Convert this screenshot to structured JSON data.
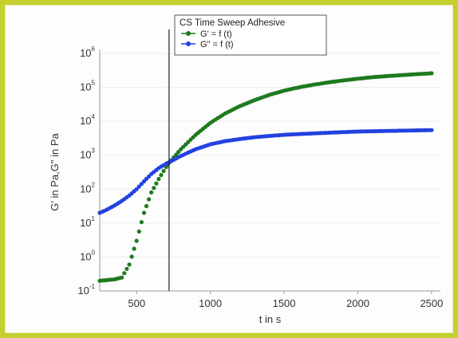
{
  "chart_data": {
    "type": "scatter",
    "title": "",
    "xlabel": "t in s",
    "ylabel": "G' in Pa,G\" in Pa",
    "xlim": [
      250,
      2560
    ],
    "ylim_log10": [
      -1,
      6
    ],
    "y_scale": "log",
    "x_ticks": [
      500,
      1000,
      1500,
      2000,
      2500
    ],
    "y_ticks": [
      {
        "base": "10",
        "exp": "-1"
      },
      {
        "base": "10",
        "exp": "0"
      },
      {
        "base": "10",
        "exp": "1"
      },
      {
        "base": "10",
        "exp": "2"
      },
      {
        "base": "10",
        "exp": "3"
      },
      {
        "base": "10",
        "exp": "4"
      },
      {
        "base": "10",
        "exp": "5"
      },
      {
        "base": "10",
        "exp": "6"
      }
    ],
    "vertical_line_x": 720,
    "grid": "horizontal",
    "legend": {
      "placement": "top-center",
      "title": "CS Time Sweep Adhesive",
      "entries": [
        "G' = f (t)",
        "G\" = f (t)"
      ]
    },
    "series": [
      {
        "name": "G' = f (t)",
        "color": "#1e7a1e",
        "x": [
          250,
          350,
          400,
          450,
          500,
          550,
          600,
          650,
          700,
          720,
          800,
          900,
          1000,
          1100,
          1200,
          1300,
          1400,
          1500,
          1600,
          1700,
          1800,
          1900,
          2000,
          2100,
          2200,
          2300,
          2400,
          2500
        ],
        "y": [
          0.2,
          0.22,
          0.25,
          0.6,
          3,
          20,
          80,
          200,
          450,
          600,
          1500,
          4000,
          9000,
          17000,
          28000,
          42000,
          60000,
          80000,
          100000,
          120000,
          140000,
          160000,
          180000,
          200000,
          215000,
          230000,
          245000,
          260000
        ]
      },
      {
        "name": "G\" = f (t)",
        "color": "#2341e0",
        "x": [
          250,
          300,
          350,
          400,
          450,
          500,
          550,
          600,
          650,
          700,
          720,
          800,
          900,
          1000,
          1100,
          1200,
          1300,
          1400,
          1500,
          1600,
          1700,
          1800,
          1900,
          2000,
          2100,
          2200,
          2300,
          2400,
          2500
        ],
        "y": [
          20,
          25,
          33,
          45,
          65,
          100,
          170,
          280,
          420,
          560,
          620,
          950,
          1500,
          2100,
          2600,
          3000,
          3400,
          3700,
          4000,
          4200,
          4400,
          4600,
          4800,
          5000,
          5100,
          5200,
          5300,
          5400,
          5500
        ]
      }
    ]
  }
}
